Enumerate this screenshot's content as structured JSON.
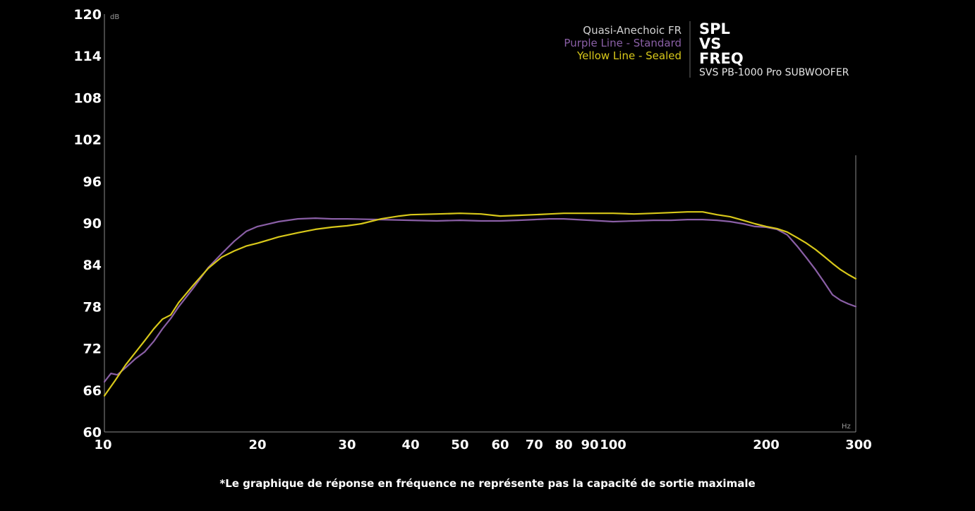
{
  "chart_data": {
    "type": "line",
    "x_scale": "log",
    "xlim": [
      10,
      300
    ],
    "ylim": [
      60,
      120
    ],
    "yticks": [
      "60",
      "66",
      "72",
      "78",
      "84",
      "90",
      "96",
      "102",
      "108",
      "114",
      "120"
    ],
    "xticks": [
      {
        "value": 10,
        "label": "10"
      },
      {
        "value": 20,
        "label": "20"
      },
      {
        "value": 30,
        "label": "30"
      },
      {
        "value": 40,
        "label": "40"
      },
      {
        "value": 50,
        "label": "50"
      },
      {
        "value": 60,
        "label": "60"
      },
      {
        "value": 70,
        "label": "70"
      },
      {
        "value": 80,
        "label": "80"
      },
      {
        "value": 90,
        "label": "90"
      },
      {
        "value": 100,
        "label": "100"
      },
      {
        "value": 200,
        "label": "200"
      },
      {
        "value": 300,
        "label": "300"
      }
    ],
    "ylabel": "dB",
    "xlabel": "Hz",
    "legend": {
      "title": "Quasi-Anechoic FR",
      "entries": [
        {
          "label": "Purple Line - Standard",
          "color": "#8a5fa6"
        },
        {
          "label": "Yellow Line - Sealed",
          "color": "#d8c81a"
        }
      ]
    },
    "heading": {
      "line1": "SPL",
      "line2": "VS",
      "line3": "FREQ",
      "subtitle": "SVS PB-1000 Pro SUBWOOFER"
    },
    "series": [
      {
        "color": "#8a5fa6",
        "x": [
          10,
          10.3,
          10.6,
          11,
          11.5,
          12,
          12.5,
          13,
          13.5,
          14,
          15,
          16,
          17,
          18,
          19,
          20,
          22,
          24,
          26,
          28,
          30,
          35,
          40,
          45,
          50,
          55,
          60,
          65,
          70,
          75,
          80,
          90,
          100,
          110,
          120,
          130,
          140,
          150,
          160,
          170,
          180,
          190,
          200,
          210,
          220,
          230,
          240,
          250,
          260,
          270,
          280,
          290,
          300
        ],
        "y": [
          67.2,
          68.4,
          68.2,
          69.2,
          70.5,
          71.5,
          73.0,
          74.8,
          76.3,
          78.0,
          80.8,
          83.6,
          85.6,
          87.4,
          88.8,
          89.5,
          90.2,
          90.6,
          90.7,
          90.6,
          90.6,
          90.5,
          90.4,
          90.3,
          90.4,
          90.3,
          90.3,
          90.4,
          90.5,
          90.6,
          90.6,
          90.4,
          90.2,
          90.3,
          90.4,
          90.4,
          90.5,
          90.5,
          90.4,
          90.2,
          89.9,
          89.5,
          89.4,
          89.1,
          88.3,
          86.7,
          85.0,
          83.3,
          81.5,
          79.7,
          78.9,
          78.4,
          78.0
        ]
      },
      {
        "color": "#d8c81a",
        "x": [
          10,
          10.5,
          11,
          11.5,
          12,
          12.5,
          13,
          13.5,
          14,
          15,
          16,
          17,
          18,
          19,
          20,
          22,
          24,
          26,
          28,
          30,
          32,
          35,
          38,
          40,
          45,
          50,
          55,
          60,
          65,
          70,
          75,
          80,
          90,
          100,
          110,
          120,
          130,
          140,
          150,
          160,
          170,
          180,
          190,
          200,
          210,
          220,
          230,
          240,
          250,
          260,
          270,
          280,
          290,
          300
        ],
        "y": [
          65.2,
          67.4,
          69.6,
          71.4,
          73.1,
          74.8,
          76.2,
          76.8,
          78.6,
          81.2,
          83.5,
          85.1,
          86.0,
          86.7,
          87.1,
          88.0,
          88.6,
          89.1,
          89.4,
          89.6,
          89.9,
          90.6,
          91.0,
          91.2,
          91.3,
          91.4,
          91.3,
          91.0,
          91.1,
          91.2,
          91.3,
          91.4,
          91.4,
          91.4,
          91.3,
          91.4,
          91.5,
          91.6,
          91.6,
          91.2,
          90.9,
          90.4,
          89.9,
          89.5,
          89.2,
          88.7,
          87.9,
          87.1,
          86.2,
          85.2,
          84.2,
          83.3,
          82.6,
          82.0
        ]
      }
    ]
  },
  "footnote": "*Le graphique de réponse en fréquence ne représente pas la capacité de sortie maximale"
}
